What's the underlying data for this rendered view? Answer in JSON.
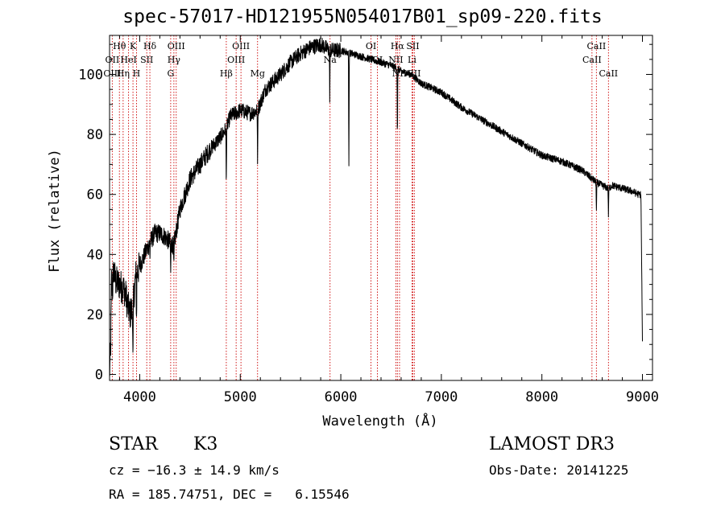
{
  "chart_data": {
    "type": "line",
    "title": "spec-57017-HD121955N054017B01_sp09-220.fits",
    "xlabel": "Wavelength (Å)",
    "ylabel": "Flux (relative)",
    "xlim": [
      3700,
      9100
    ],
    "ylim": [
      -2,
      113
    ],
    "xticks": [
      "4000",
      "5000",
      "6000",
      "7000",
      "8000",
      "9000"
    ],
    "yticks": [
      "0",
      "20",
      "40",
      "60",
      "80",
      "100"
    ],
    "xtick_values": [
      4000,
      5000,
      6000,
      7000,
      8000,
      9000
    ],
    "ytick_values": [
      0,
      20,
      40,
      60,
      80,
      100
    ],
    "series": [
      {
        "name": "spectrum",
        "anchors_x": [
          3700,
          3712,
          3720,
          3730,
          3740,
          3760,
          3800,
          3850,
          3900,
          3930,
          3960,
          4000,
          4050,
          4100,
          4150,
          4200,
          4250,
          4300,
          4340,
          4400,
          4500,
          4600,
          4700,
          4800,
          4861,
          4900,
          5000,
          5100,
          5172,
          5250,
          5400,
          5500,
          5600,
          5700,
          5800,
          5890,
          5950,
          6000,
          6100,
          6200,
          6300,
          6400,
          6500,
          6563,
          6600,
          6700,
          6800,
          7000,
          7200,
          7400,
          7600,
          7800,
          8000,
          8200,
          8400,
          8542,
          8600,
          8662,
          8700,
          8800,
          8900,
          8960,
          8985,
          9000
        ],
        "anchors_y": [
          0,
          10,
          32,
          28,
          35,
          31,
          30,
          28,
          20,
          22,
          33,
          36,
          40,
          44,
          47,
          47,
          46,
          44,
          43,
          55,
          65,
          70,
          75,
          79,
          82,
          86,
          88,
          87,
          88,
          95,
          100,
          104,
          107,
          109,
          110,
          108,
          108,
          108,
          107,
          106,
          105,
          104,
          103,
          102,
          101,
          100,
          97,
          94,
          89,
          85,
          81,
          77,
          73,
          71,
          68,
          64,
          63,
          62,
          63,
          62,
          61,
          60,
          60,
          10
        ],
        "absorption_lines": [
          {
            "x": 3933,
            "depth": 20
          },
          {
            "x": 3968,
            "depth": 15
          },
          {
            "x": 4101,
            "depth": 5
          },
          {
            "x": 4308,
            "depth": 10
          },
          {
            "x": 4340,
            "depth": 8
          },
          {
            "x": 4861,
            "depth": 19
          },
          {
            "x": 5172,
            "depth": 18
          },
          {
            "x": 5890,
            "depth": 15
          },
          {
            "x": 6080,
            "depth": 38
          },
          {
            "x": 6563,
            "depth": 22
          },
          {
            "x": 8542,
            "depth": 10
          },
          {
            "x": 8662,
            "depth": 9
          }
        ]
      }
    ],
    "line_markers": [
      {
        "label": "Hθ",
        "x": 3798,
        "row": 0
      },
      {
        "label": "OII",
        "x": 3727,
        "row": 1
      },
      {
        "label": "OIII",
        "x": 3727,
        "row": 2
      },
      {
        "label": "K",
        "x": 3933,
        "row": 0
      },
      {
        "label": "HeI",
        "x": 3889,
        "row": 1
      },
      {
        "label": "Hη",
        "x": 3835,
        "row": 2
      },
      {
        "label": "Hδ",
        "x": 4101,
        "row": 0
      },
      {
        "label": "SII",
        "x": 4070,
        "row": 1
      },
      {
        "label": "H",
        "x": 3968,
        "row": 2
      },
      {
        "label": "OIII",
        "x": 4363,
        "row": 0
      },
      {
        "label": "Hγ",
        "x": 4340,
        "row": 1
      },
      {
        "label": "G",
        "x": 4308,
        "row": 2
      },
      {
        "label": "Hβ",
        "x": 4861,
        "row": 2
      },
      {
        "label": "OIII",
        "x": 5007,
        "row": 0
      },
      {
        "label": "OIII",
        "x": 4959,
        "row": 1
      },
      {
        "label": "Mg",
        "x": 5172,
        "row": 2
      },
      {
        "label": "Na",
        "x": 5893,
        "row": 1
      },
      {
        "label": "OI",
        "x": 6300,
        "row": 0
      },
      {
        "label": "OI",
        "x": 6364,
        "row": 1
      },
      {
        "label": "Hα",
        "x": 6563,
        "row": 0
      },
      {
        "label": "SII",
        "x": 6716,
        "row": 0
      },
      {
        "label": "NII",
        "x": 6548,
        "row": 1
      },
      {
        "label": "Li",
        "x": 6708,
        "row": 1
      },
      {
        "label": "NII",
        "x": 6584,
        "row": 2
      },
      {
        "label": "SII",
        "x": 6731,
        "row": 2
      },
      {
        "label": "CaII",
        "x": 8542,
        "row": 0
      },
      {
        "label": "CaII",
        "x": 8498,
        "row": 1
      },
      {
        "label": "CaII",
        "x": 8662,
        "row": 2
      }
    ]
  },
  "info": {
    "object_class": "STAR",
    "subclass": "K3",
    "survey": "LAMOST DR3",
    "cz": "cz = −16.3 ± 14.9 km/s",
    "obs_date": "Obs-Date: 20141225",
    "coords": "RA = 185.74751, DEC =   6.15546"
  },
  "colors": {
    "spectrum": "#000000",
    "marker_line": "#cc0000",
    "axes": "#000000"
  }
}
